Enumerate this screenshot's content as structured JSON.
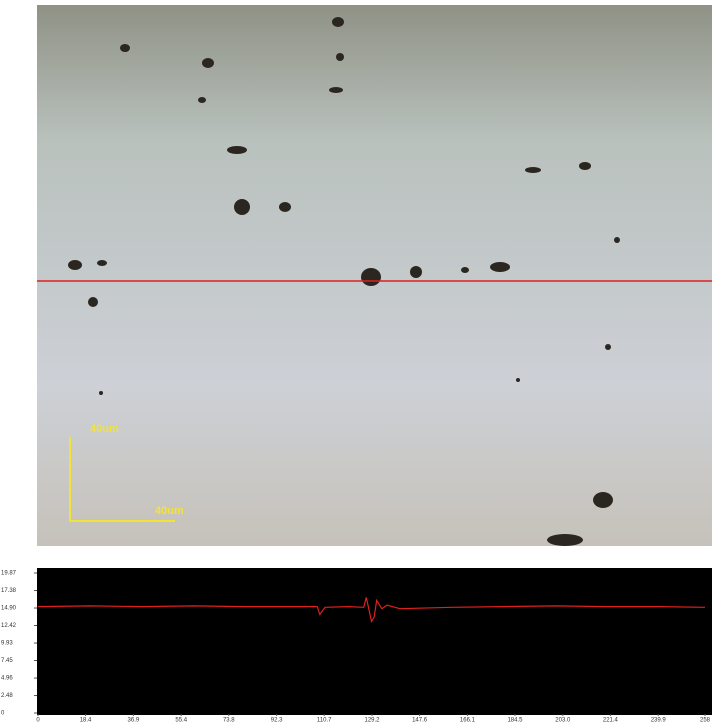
{
  "image": {
    "scale_labels": [
      "40um",
      "40um"
    ]
  },
  "chart_data": {
    "type": "line",
    "x": [
      0,
      20,
      40,
      60,
      80,
      100,
      108,
      109,
      111,
      120,
      126,
      127,
      129,
      130,
      131,
      133,
      135,
      140,
      160,
      180,
      200,
      220,
      240,
      258
    ],
    "series": [
      {
        "color": "#e0201c",
        "values": [
          15.1,
          15.2,
          15.1,
          15.2,
          15.1,
          15.1,
          15.1,
          14.0,
          15.0,
          15.1,
          15.0,
          16.4,
          13.0,
          13.6,
          16.0,
          14.8,
          15.3,
          14.8,
          15.0,
          15.1,
          15.2,
          15.1,
          15.1,
          15.0
        ]
      }
    ],
    "xlim": [
      0,
      258
    ],
    "xticks": [
      0,
      18.4,
      36.9,
      55.4,
      73.8,
      92.3,
      110.7,
      129.2,
      147.6,
      166.1,
      184.5,
      {
        "value": 203,
        "label": "203.0"
      },
      221.4,
      239.9,
      258
    ],
    "ylim": [
      0,
      19.87
    ],
    "yticks": [
      0,
      2.48,
      4.96,
      7.45,
      9.93,
      12.42,
      {
        "value": 14.9,
        "label": "14.90"
      },
      17.38,
      19.87
    ]
  }
}
